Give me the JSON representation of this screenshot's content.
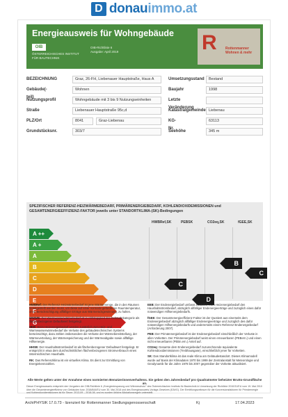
{
  "site": {
    "logo_letter": "D",
    "logo_bold": "donau",
    "logo_light": "immo.at"
  },
  "header": {
    "title": "Energieausweis für Wohngebäude",
    "oib_badge": "OIB",
    "oib_note": "ÖSTERREICHISCHES INSTITUT FÜR BAUTECHNIK",
    "oib_right": "OIB-Richtlinie 6\nAusgabe: April 2019",
    "brand_symbol": "R",
    "brand_name": "Rottenmanner\nWohnen & mehr"
  },
  "info_left": [
    {
      "label": "BEZEICHNUNG",
      "value": "Graz, 26-FH, Liebenauer Hauptstraße, Haus A"
    },
    {
      "label": "Gebäude(-teil)",
      "value": "Wohnen"
    },
    {
      "label": "Nutzungsprofil",
      "value": "Wohngebäude mit 3 bis 9 Nutzungseinheiten"
    },
    {
      "label": "Straße",
      "value": "Liebenauer Hauptstraße 95c,d"
    },
    {
      "label": "PLZ/Ort",
      "value": "8041",
      "value2": "Graz-Liebenau"
    },
    {
      "label": "Grundstücksnr.",
      "value": "303/7"
    }
  ],
  "info_right": [
    {
      "label": "Umsetzungsstand",
      "value": "Bestand"
    },
    {
      "label": "Baujahr",
      "value": "1998"
    },
    {
      "label": "Letzte Veränderung",
      "value": ""
    },
    {
      "label": "Katastralgemeinde",
      "value": "Liebenau"
    },
    {
      "label": "KG-Nr.",
      "value": "63113"
    },
    {
      "label": "Seehöhe",
      "value": "345 m"
    }
  ],
  "energy": {
    "title": "SPEZIFISCHER REFERENZ-HEIZWÄRMEBEDARF, PRIMÄRENERGIEBEDARF, KOHLENDIOXIDEMISSIONEN und GESAMTENERGIEEFFIZIENZ-FAKTOR jeweils unter STANDORTKLIMA-(SK)-Bedingungen",
    "columns": [
      "HWBRef,SK",
      "PEBSK",
      "CO2eq,SK",
      "fGEE,SK"
    ],
    "classes": [
      {
        "label": "A ++",
        "color": "#1e8a3c"
      },
      {
        "label": "A +",
        "color": "#3aa043"
      },
      {
        "label": "A",
        "color": "#7cba3b"
      },
      {
        "label": "B",
        "color": "#e3b81c"
      },
      {
        "label": "C",
        "color": "#e8a31d"
      },
      {
        "label": "D",
        "color": "#e6801f"
      },
      {
        "label": "E",
        "color": "#e3611f"
      },
      {
        "label": "F",
        "color": "#d9401f"
      },
      {
        "label": "G",
        "color": "#c81f1f"
      }
    ],
    "ratings": [
      {
        "column": "HWBRef,SK",
        "class": "C"
      },
      {
        "column": "PEBSK",
        "class": "D"
      },
      {
        "column": "CO2eq,SK",
        "class": "B"
      },
      {
        "column": "fGEE,SK",
        "class": "C"
      }
    ]
  },
  "notes": {
    "left": [
      {
        "head": "HWBRef:",
        "text": "Der Referenz-Heizwärmebedarf ist jene Wärmemenge, die in den Räumen bereitgestellt werden muss, um diese auf einer normativ geforderten Raumtemperatur, ohne Berücksichtigung allfälliger Erträge aus Wärmerückgewinnung, zu halten."
      },
      {
        "head": "WWWB:",
        "text": "Der Warmwasserwärmebedarf ist in Abhängigkeit der Gebäudekategorie als flächenbezogener Defaultwert festgelegt."
      },
      {
        "head": "HEB:",
        "text": "Beim Heizenergiebedarf werden zusätzlich zum Heiz- und Warmwasserwärmebedarf die Verluste des gebäudetechnischen Systems berücksichtigt, dazu zählen insbesondere die Verluste der Wärmebereitstellung, der Wärmeverteilung, der Wärmespeicherung und der Wärmeabgabe sowie allfällige Hilfsenergie."
      },
      {
        "head": "HHSB:",
        "text": "Der Haushaltsstrombedarf ist als flächenbezogener Defaultwert festgelegt. Er entspricht in etwa dem durchschnittlichen flächenbezogenen Stromverbrauch eines österreichischen Haushalts."
      },
      {
        "head": "RK:",
        "text": "Das Referenzklima ist ein virtuelles Klima. Es dient zur Ermittlung von Energiekennzahlen."
      }
    ],
    "right": [
      {
        "head": "EEB:",
        "text": "Der Endenergiebedarf umfasst zusätzlich zum Heizenergiebedarf den Haushaltsstrombedarf, abzüglich allfälliger Endenergieerträge und zuzüglich eines dafür notwendigen Hilfsenergiebedarfs."
      },
      {
        "head": "fGEE:",
        "text": "Der Gesamtenergieeffizienz-Faktor ist der Quotient aus einerseits dem Endenergiebedarf abzüglich allfälliger Endenergieerträge und zuzüglich des dafür notwendigen Hilfsenergiebedarfs und andererseits einem Referenz-Endenergiebedarf (Anforderung 2007)."
      },
      {
        "head": "PEB:",
        "text": "Der Primärenergiebedarf ist der Endenergiebedarf einschließlich der Verluste in allen Vorketten. Der Primärenergiebedarf weist einen erneuerbaren (PEBern.) und einen nicht erneuerbaren (PEBn.ern.) Anteil auf."
      },
      {
        "head": "CO2eq:",
        "text": "Gesamte dem Endenergiebedarf zuzurechnende äquivalente Kohlendioxidemissionen (Treibhausgase), einschließlich jener für Vorketten."
      },
      {
        "head": "SK:",
        "text": "Das Standortklima ist das reale Klima am Gebäudestandort. Dieses Klimamodell wurde auf Basis der Klimadaten 1970 bis 1999 der Zentralanstalt für Meteorologie und Geodynamik für die Jahre 1978 bis 2007 gegenüber der Vorkette aktualisiert."
      }
    ],
    "footer": "Alle Werte gelten unter der Annahme eines normierten Benutzerinnenverhaltens. Sie geben den Jahresbedarf pro Quadratmeter beheizter Brutto-Grundfläche an."
  },
  "footnote": "Dieser Energieausweis entspricht den Vorgaben der OIB-Richtlinie 6 „Energieeinsparung und Wärmeschutz\" des Österreichischen Instituts für Bautechnik in Umsetzung der Richtlinie 2010/31/EU vom 19. Mai 2010 über die Gesamtenergieeffizienz von Gebäuden bzw. 2018/844/EU vom 30. Mai 2018 und des Energieausweis-Vorlage-Gesetzes (EAVG). Der Ermittlungszeitraum für die Konversionsfaktoren für Primärenergie und Kohlendioxidemissionen ist für Strom: 2013-09 – 2018-08, und es wurden übliche Allokationsregeln unterstellt.",
  "footer": {
    "software": "ArchiPHYSIK 17.0.73 - lizenziert für Rottenmanner Siedlungsgenossenschaft",
    "initials": "Kj",
    "date": "17.04.2023"
  }
}
